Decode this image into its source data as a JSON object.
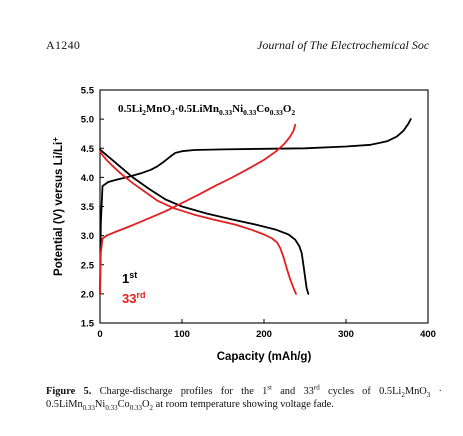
{
  "header": {
    "page_number": "A1240",
    "journal_title": "Journal of The Electrochemical Soc"
  },
  "chart_data": {
    "type": "line",
    "title_parts": [
      {
        "t": "0.5Li"
      },
      {
        "t": "2",
        "sub": true
      },
      {
        "t": "MnO"
      },
      {
        "t": "3",
        "sub": true
      },
      {
        "t": "·0.5LiMn"
      },
      {
        "t": "0.33",
        "sub": true
      },
      {
        "t": "Ni"
      },
      {
        "t": "0.33",
        "sub": true
      },
      {
        "t": "Co"
      },
      {
        "t": "0.33",
        "sub": true
      },
      {
        "t": "O"
      },
      {
        "t": "2",
        "sub": true
      }
    ],
    "xlabel": "Capacity (mAh/g)",
    "ylabel": "Potential (V) versus Li/Li",
    "ylabel_sup": "+",
    "xlim": [
      0,
      400
    ],
    "ylim": [
      1.5,
      5.5
    ],
    "x_ticks": [
      0,
      100,
      200,
      300,
      400
    ],
    "y_ticks": [
      "1.5",
      "2.0",
      "2.5",
      "3.0",
      "3.5",
      "4.0",
      "4.5",
      "5.0",
      "5.5"
    ],
    "grid": false,
    "legend": [
      {
        "num": "1",
        "sup": "st",
        "color": "#000000"
      },
      {
        "num": "33",
        "sup": "rd",
        "color": "#e41e1e"
      }
    ],
    "series": [
      {
        "name": "1st charge",
        "color": "#000000",
        "x": [
          0,
          1,
          3,
          10,
          20,
          35,
          50,
          62,
          70,
          78,
          86,
          92,
          100,
          115,
          150,
          200,
          250,
          300,
          330,
          350,
          362,
          370,
          376,
          379
        ],
        "y": [
          2.0,
          3.2,
          3.85,
          3.92,
          3.96,
          4.01,
          4.07,
          4.13,
          4.19,
          4.27,
          4.36,
          4.42,
          4.45,
          4.47,
          4.48,
          4.49,
          4.5,
          4.53,
          4.56,
          4.62,
          4.7,
          4.8,
          4.92,
          5.0
        ]
      },
      {
        "name": "1st discharge",
        "color": "#000000",
        "x": [
          0,
          3,
          8,
          15,
          25,
          40,
          60,
          80,
          100,
          130,
          160,
          190,
          215,
          230,
          238,
          243,
          246,
          248,
          250,
          252,
          254
        ],
        "y": [
          4.48,
          4.44,
          4.38,
          4.3,
          4.18,
          4.0,
          3.8,
          3.62,
          3.5,
          3.38,
          3.28,
          3.19,
          3.1,
          3.02,
          2.93,
          2.82,
          2.7,
          2.5,
          2.3,
          2.1,
          2.0
        ]
      },
      {
        "name": "33rd charge",
        "color": "#e41e1e",
        "x": [
          0,
          1,
          3,
          8,
          20,
          40,
          60,
          80,
          100,
          120,
          140,
          160,
          180,
          200,
          215,
          225,
          232,
          236,
          238
        ],
        "y": [
          2.0,
          2.7,
          2.95,
          3.0,
          3.07,
          3.18,
          3.3,
          3.42,
          3.56,
          3.7,
          3.85,
          3.99,
          4.14,
          4.3,
          4.45,
          4.58,
          4.7,
          4.8,
          4.9
        ]
      },
      {
        "name": "33rd discharge",
        "color": "#e41e1e",
        "x": [
          0,
          3,
          8,
          15,
          25,
          40,
          55,
          70,
          90,
          115,
          140,
          165,
          185,
          200,
          210,
          216,
          220,
          224,
          228,
          232,
          236,
          239
        ],
        "y": [
          4.45,
          4.38,
          4.3,
          4.2,
          4.07,
          3.9,
          3.75,
          3.6,
          3.47,
          3.36,
          3.27,
          3.19,
          3.1,
          3.02,
          2.95,
          2.88,
          2.78,
          2.62,
          2.42,
          2.25,
          2.1,
          2.0
        ]
      }
    ]
  },
  "caption": {
    "label": "Figure 5.",
    "text_parts": [
      {
        "t": " Charge-discharge profiles for the 1"
      },
      {
        "t": "st",
        "sup": true
      },
      {
        "t": " and 33"
      },
      {
        "t": "rd",
        "sup": true
      },
      {
        "t": " cycles of 0.5Li"
      },
      {
        "t": "2",
        "sub": true
      },
      {
        "t": "MnO"
      },
      {
        "t": "3",
        "sub": true
      },
      {
        "t": " · 0.5LiMn"
      },
      {
        "t": "0.33",
        "sub": true
      },
      {
        "t": "Ni"
      },
      {
        "t": "0.33",
        "sub": true
      },
      {
        "t": "Co"
      },
      {
        "t": "0.33",
        "sub": true
      },
      {
        "t": "O"
      },
      {
        "t": "2",
        "sub": true
      },
      {
        "t": " at room temperature showing voltage fade."
      }
    ]
  }
}
